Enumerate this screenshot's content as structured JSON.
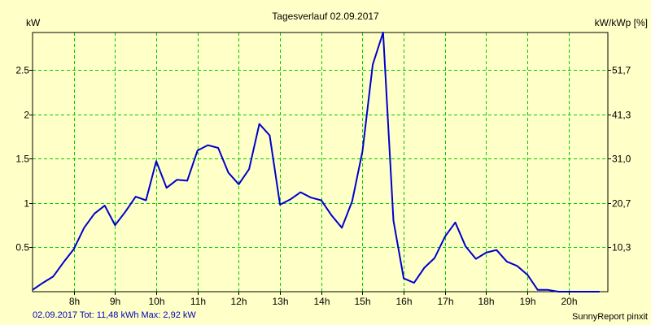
{
  "chart_data": {
    "type": "line",
    "title": "Tagesverlauf 02.09.2017",
    "ylabel_left": "kW",
    "ylabel_right": "kW/kWp [%]",
    "xlim": [
      7.0,
      20.95
    ],
    "ylim": [
      0,
      2.92
    ],
    "grid": true,
    "x_ticks": [
      {
        "x": 8,
        "label": "8h"
      },
      {
        "x": 9,
        "label": "9h"
      },
      {
        "x": 10,
        "label": "10h"
      },
      {
        "x": 11,
        "label": "11h"
      },
      {
        "x": 12,
        "label": "12h"
      },
      {
        "x": 13,
        "label": "13h"
      },
      {
        "x": 14,
        "label": "14h"
      },
      {
        "x": 15,
        "label": "15h"
      },
      {
        "x": 16,
        "label": "16h"
      },
      {
        "x": 17,
        "label": "17h"
      },
      {
        "x": 18,
        "label": "18h"
      },
      {
        "x": 19,
        "label": "19h"
      },
      {
        "x": 20,
        "label": "20h"
      }
    ],
    "y_ticks_left": [
      {
        "y": 0.5,
        "label": "0.5"
      },
      {
        "y": 1.0,
        "label": "1"
      },
      {
        "y": 1.5,
        "label": "1.5"
      },
      {
        "y": 2.0,
        "label": "2"
      },
      {
        "y": 2.5,
        "label": "2.5"
      }
    ],
    "y_ticks_right": [
      {
        "y": 0.5,
        "label": "10,3"
      },
      {
        "y": 1.0,
        "label": "20,7"
      },
      {
        "y": 1.5,
        "label": "31,0"
      },
      {
        "y": 2.0,
        "label": "41,3"
      },
      {
        "y": 2.5,
        "label": "51,7"
      }
    ],
    "series": [
      {
        "color": "#0000cc",
        "x": [
          7.0,
          7.25,
          7.5,
          7.75,
          8.0,
          8.25,
          8.5,
          8.75,
          9.0,
          9.25,
          9.5,
          9.75,
          10.0,
          10.25,
          10.5,
          10.75,
          11.0,
          11.25,
          11.5,
          11.75,
          12.0,
          12.25,
          12.5,
          12.75,
          13.0,
          13.25,
          13.5,
          13.75,
          14.0,
          14.25,
          14.5,
          14.75,
          15.0,
          15.25,
          15.5,
          15.75,
          16.0,
          16.25,
          16.5,
          16.75,
          17.0,
          17.25,
          17.5,
          17.75,
          18.0,
          18.25,
          18.5,
          18.75,
          19.0,
          19.25,
          19.5,
          19.75,
          20.0,
          20.25,
          20.5,
          20.75
        ],
        "y": [
          0.02,
          0.1,
          0.17,
          0.33,
          0.48,
          0.72,
          0.88,
          0.97,
          0.75,
          0.9,
          1.07,
          1.03,
          1.47,
          1.17,
          1.26,
          1.25,
          1.59,
          1.65,
          1.62,
          1.34,
          1.21,
          1.38,
          1.89,
          1.76,
          0.98,
          1.04,
          1.12,
          1.06,
          1.03,
          0.86,
          0.72,
          1.02,
          1.58,
          2.56,
          2.92,
          0.8,
          0.15,
          0.1,
          0.27,
          0.38,
          0.62,
          0.78,
          0.51,
          0.37,
          0.44,
          0.47,
          0.34,
          0.29,
          0.19,
          0.02,
          0.02,
          0.0,
          0.0,
          0.0,
          0.0,
          0.0
        ]
      }
    ]
  },
  "footer": {
    "summary": "02.09.2017 Tot: 11,48 kWh Max: 2,92 kW",
    "brand": "SunnyReport pinxit"
  }
}
